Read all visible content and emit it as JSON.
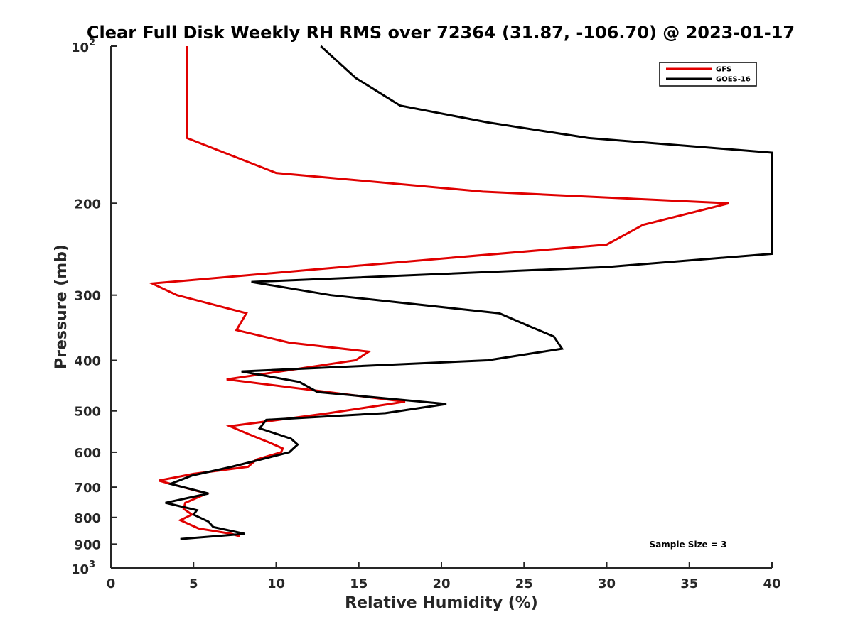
{
  "chart_data": {
    "type": "line",
    "title": "Clear Full Disk Weekly RH RMS over 72364 (31.87, -106.70) @ 2023-01-17",
    "xlabel": "Relative Humidity (%)",
    "ylabel": "Pressure (mb)",
    "xlim": [
      0,
      40
    ],
    "ylim": [
      100,
      1000
    ],
    "y_scale": "log",
    "y_reversed": true,
    "x_ticks": [
      "0",
      "5",
      "10",
      "15",
      "20",
      "25",
      "30",
      "35",
      "40"
    ],
    "y_ticks": [
      {
        "value": 100,
        "base": "10",
        "exp": "2"
      },
      {
        "value": 200,
        "label": "200"
      },
      {
        "value": 300,
        "label": "300"
      },
      {
        "value": 400,
        "label": "400"
      },
      {
        "value": 500,
        "label": "500"
      },
      {
        "value": 600,
        "label": "600"
      },
      {
        "value": 700,
        "label": "700"
      },
      {
        "value": 800,
        "label": "800"
      },
      {
        "value": 900,
        "label": "900"
      },
      {
        "value": 1000,
        "base": "10",
        "exp": "3"
      }
    ],
    "grid": false,
    "legend_position": "top-right",
    "annotation": "Sample Size = 3",
    "series": [
      {
        "name": "GFS",
        "color": "#e00000",
        "points": [
          [
            4.6,
            100
          ],
          [
            4.6,
            125
          ],
          [
            4.6,
            150
          ],
          [
            10.0,
            175
          ],
          [
            22.5,
            190
          ],
          [
            37.4,
            200
          ],
          [
            32.2,
            220
          ],
          [
            30.0,
            240
          ],
          [
            14.0,
            265
          ],
          [
            2.5,
            285
          ],
          [
            4.0,
            300
          ],
          [
            8.2,
            325
          ],
          [
            7.6,
            350
          ],
          [
            10.8,
            370
          ],
          [
            15.6,
            385
          ],
          [
            14.8,
            400
          ],
          [
            7.0,
            435
          ],
          [
            17.8,
            480
          ],
          [
            13.2,
            505
          ],
          [
            7.2,
            535
          ],
          [
            8.4,
            555
          ],
          [
            9.6,
            575
          ],
          [
            10.4,
            590
          ],
          [
            10.3,
            600
          ],
          [
            8.8,
            620
          ],
          [
            8.3,
            640
          ],
          [
            5.0,
            660
          ],
          [
            2.9,
            680
          ],
          [
            5.8,
            720
          ],
          [
            4.5,
            750
          ],
          [
            4.4,
            770
          ],
          [
            4.9,
            790
          ],
          [
            4.2,
            810
          ],
          [
            5.3,
            840
          ],
          [
            7.3,
            860
          ],
          [
            7.8,
            870
          ]
        ]
      },
      {
        "name": "GOES-16",
        "color": "#000000",
        "points": [
          [
            12.7,
            100
          ],
          [
            14.8,
            115
          ],
          [
            17.5,
            130
          ],
          [
            22.8,
            140
          ],
          [
            28.9,
            150
          ],
          [
            40.0,
            160
          ],
          [
            40.0,
            250
          ],
          [
            30.0,
            265
          ],
          [
            8.5,
            283
          ],
          [
            13.3,
            300
          ],
          [
            23.5,
            325
          ],
          [
            25.4,
            345
          ],
          [
            26.8,
            360
          ],
          [
            27.3,
            380
          ],
          [
            22.8,
            400
          ],
          [
            7.9,
            420
          ],
          [
            11.4,
            440
          ],
          [
            12.5,
            460
          ],
          [
            20.3,
            485
          ],
          [
            16.6,
            505
          ],
          [
            9.4,
            520
          ],
          [
            9.0,
            540
          ],
          [
            10.9,
            565
          ],
          [
            11.3,
            580
          ],
          [
            10.8,
            600
          ],
          [
            8.6,
            625
          ],
          [
            7.3,
            640
          ],
          [
            4.9,
            665
          ],
          [
            3.6,
            690
          ],
          [
            5.9,
            720
          ],
          [
            3.3,
            750
          ],
          [
            5.2,
            775
          ],
          [
            5.0,
            790
          ],
          [
            5.9,
            815
          ],
          [
            6.2,
            835
          ],
          [
            8.1,
            860
          ],
          [
            4.2,
            880
          ]
        ]
      }
    ]
  }
}
